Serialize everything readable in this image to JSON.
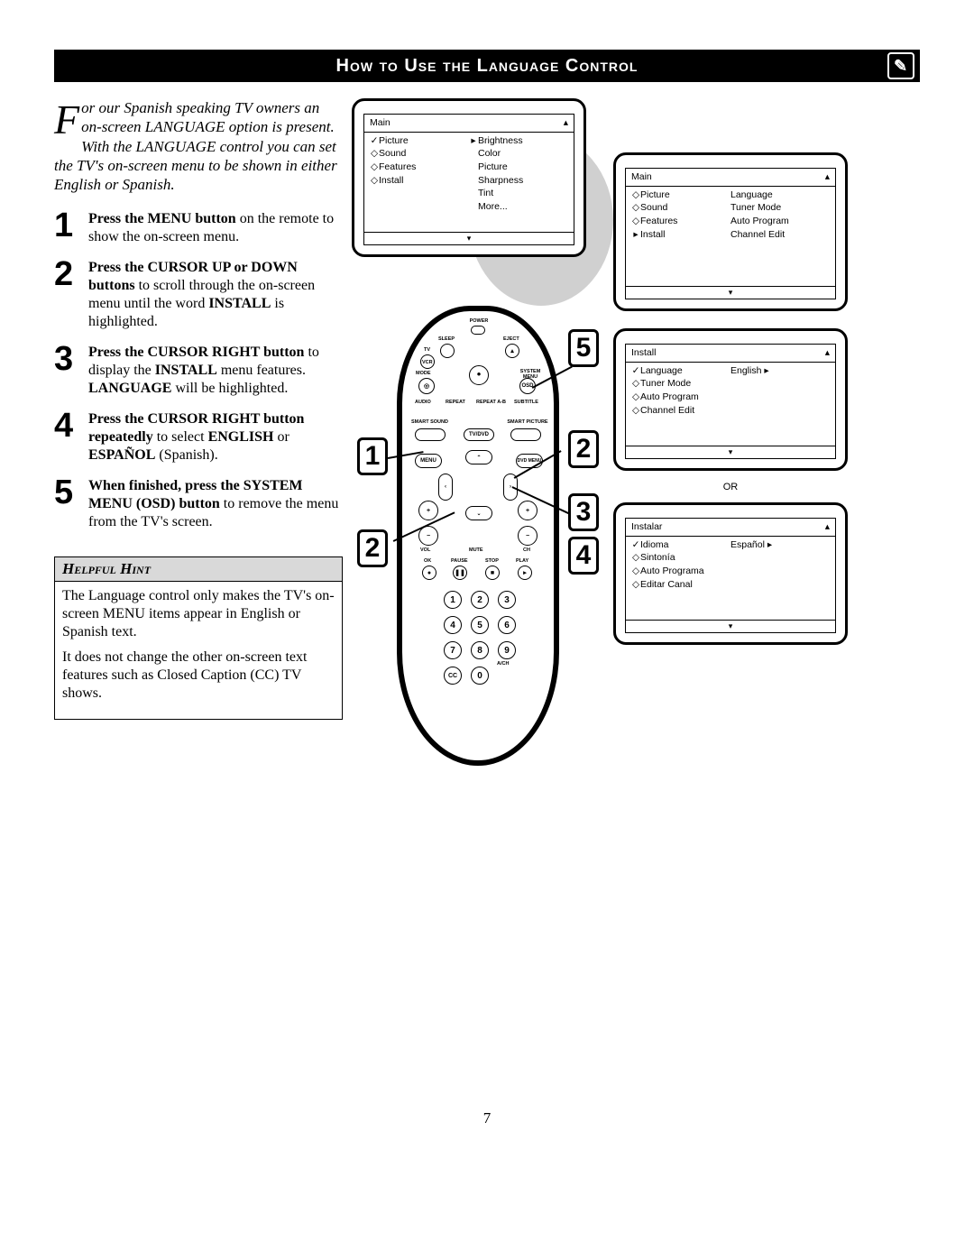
{
  "title": "How to Use the Language Control",
  "page_number": "7",
  "intro": {
    "dropcap": "F",
    "text": "or our Spanish speaking TV owners an on-screen LANGUAGE option is present. With the LANGUAGE control you can set the TV's on-screen menu to be shown in either English or Spanish."
  },
  "steps": [
    {
      "n": "1",
      "html": "<b>Press the MENU button</b> on the remote to show the on-screen menu."
    },
    {
      "n": "2",
      "html": "<b>Press the CURSOR UP or DOWN buttons</b> to scroll through the on-screen menu until the word <b>INSTALL</b> is highlighted."
    },
    {
      "n": "3",
      "html": "<b>Press the CURSOR RIGHT button</b> to display the <b>INSTALL</b> menu features. <b>LANGUAGE</b> will be highlighted."
    },
    {
      "n": "4",
      "html": "<b>Press the CURSOR RIGHT button repeatedly</b> to select <b>ENGLISH</b> or <b>ESPAÑOL</b> (Spanish)."
    },
    {
      "n": "5",
      "html": "<b>When finished, press the SYSTEM MENU (OSD) button</b> to remove the menu from the TV's screen."
    }
  ],
  "hint": {
    "title": "Helpful Hint",
    "p1": "The Language control only makes the TV's on-screen MENU items appear in English or Spanish text.",
    "p2": "It does not change the other on-screen text features such as Closed Caption (CC) TV shows."
  },
  "tv_main": {
    "header": "Main",
    "left": [
      {
        "sym": "✓",
        "t": "Picture"
      },
      {
        "sym": "◇",
        "t": "Sound"
      },
      {
        "sym": "◇",
        "t": "Features"
      },
      {
        "sym": "◇",
        "t": "Install"
      }
    ],
    "right": [
      {
        "sym": "▸",
        "t": "Brightness"
      },
      {
        "sym": "",
        "t": "Color"
      },
      {
        "sym": "",
        "t": "Picture"
      },
      {
        "sym": "",
        "t": "Sharpness"
      },
      {
        "sym": "",
        "t": "Tint"
      },
      {
        "sym": "",
        "t": "More..."
      }
    ]
  },
  "tv_main2": {
    "header": "Main",
    "left": [
      {
        "sym": "◇",
        "t": "Picture"
      },
      {
        "sym": "◇",
        "t": "Sound"
      },
      {
        "sym": "◇",
        "t": "Features"
      },
      {
        "sym": "▸",
        "t": "Install"
      }
    ],
    "right": [
      {
        "t": "Language"
      },
      {
        "t": "Tuner Mode"
      },
      {
        "t": "Auto Program"
      },
      {
        "t": "Channel Edit"
      }
    ]
  },
  "tv_install_en": {
    "header": "Install",
    "left": [
      {
        "sym": "✓",
        "t": "Language"
      },
      {
        "sym": "◇",
        "t": "Tuner Mode"
      },
      {
        "sym": "◇",
        "t": "Auto Program"
      },
      {
        "sym": "◇",
        "t": "Channel Edit"
      }
    ],
    "right_val": "English ▸"
  },
  "or_label": "OR",
  "tv_install_es": {
    "header": "Instalar",
    "left": [
      {
        "sym": "✓",
        "t": "Idioma"
      },
      {
        "sym": "◇",
        "t": "Sintonía"
      },
      {
        "sym": "◇",
        "t": "Auto Programa"
      },
      {
        "sym": "◇",
        "t": "Editar Canal"
      }
    ],
    "right_val": "Español ▸"
  },
  "remote_labels": {
    "power": "POWER",
    "sleep": "SLEEP",
    "eject": "EJECT",
    "tv": "TV",
    "vcr": "VCR",
    "mode": "MODE",
    "osd": "OSD",
    "sysmenu": "SYSTEM MENU",
    "audio": "AUDIO",
    "repeat": "REPEAT",
    "repeatab": "REPEAT A-B",
    "subtitle": "SUBTITLE",
    "smartsound": "SMART SOUND",
    "smartpic": "SMART PICTURE",
    "tvdvd": "TV/DVD",
    "menu": "MENU",
    "dvdmenu": "DVD MENU",
    "vol": "VOL",
    "ch": "CH",
    "mute": "MUTE",
    "ok": "OK",
    "pause": "PAUSE",
    "stop": "STOP",
    "play": "PLAY",
    "cc": "CC",
    "ach": "A/CH"
  },
  "callouts": {
    "c1": "1",
    "c2": "2",
    "c2b": "2",
    "c3": "3",
    "c4": "4",
    "c5": "5"
  },
  "colors": {
    "black": "#000000",
    "grey": "#d0d0d0",
    "hint_bg": "#d9d9d9"
  }
}
